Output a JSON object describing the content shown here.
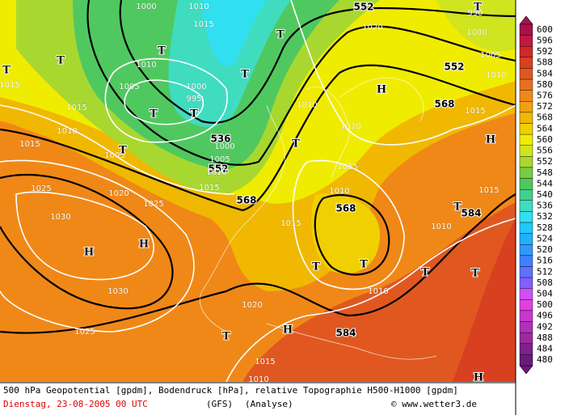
{
  "map": {
    "labels": [
      "552",
      "552",
      "568",
      "536",
      "552",
      "568",
      "584",
      "584",
      "568",
      "1000",
      "1010",
      "1015",
      "1010",
      "1005",
      "1000",
      "995",
      "1020",
      "990",
      "1000",
      "1005",
      "1010",
      "1015",
      "1010",
      "1020",
      "1015",
      "1010",
      "1015",
      "1005",
      "1000",
      "1005",
      "1010",
      "1015",
      "1025",
      "1020",
      "1025",
      "1030",
      "1015",
      "1010",
      "1015",
      "1010",
      "1015",
      "1030",
      "1025",
      "1020",
      "1010",
      "1015",
      "1010",
      "1015",
      "H",
      "H",
      "H",
      "H",
      "H",
      "H",
      "T",
      "T",
      "T",
      "T",
      "T",
      "T",
      "T",
      "T",
      "T",
      "T",
      "T",
      "T",
      "T",
      "T",
      "T",
      "T"
    ]
  },
  "legend": {
    "levels": [
      600,
      596,
      592,
      588,
      584,
      580,
      576,
      572,
      568,
      564,
      560,
      556,
      552,
      548,
      544,
      540,
      536,
      532,
      528,
      524,
      520,
      516,
      512,
      508,
      504,
      500,
      496,
      492,
      488,
      484,
      480
    ],
    "colors": [
      "#a8104c",
      "#c01840",
      "#d02828",
      "#d84020",
      "#e05820",
      "#e87020",
      "#f08818",
      "#f0a010",
      "#f0b800",
      "#f0d000",
      "#f0ec00",
      "#d0e420",
      "#a8d830",
      "#78cc40",
      "#50c860",
      "#40d090",
      "#40dcc0",
      "#30e0f0",
      "#20c8ff",
      "#20b0ff",
      "#3098ff",
      "#4080ff",
      "#6070ff",
      "#8060ff",
      "#d050f0",
      "#e040e0",
      "#c838d0",
      "#b030b8",
      "#9a2aa0",
      "#80208a",
      "#6a1a7a"
    ]
  },
  "caption": {
    "line1": "500 hPa Geopotential [gpdm], Bodendruck [hPa], relative Topographie H500-H1000 [gpdm]",
    "date": "Dienstag, 23-08-2005  00 UTC",
    "model": "(GFS)",
    "run": "(Analyse)",
    "source": "© www.wetter3.de"
  }
}
